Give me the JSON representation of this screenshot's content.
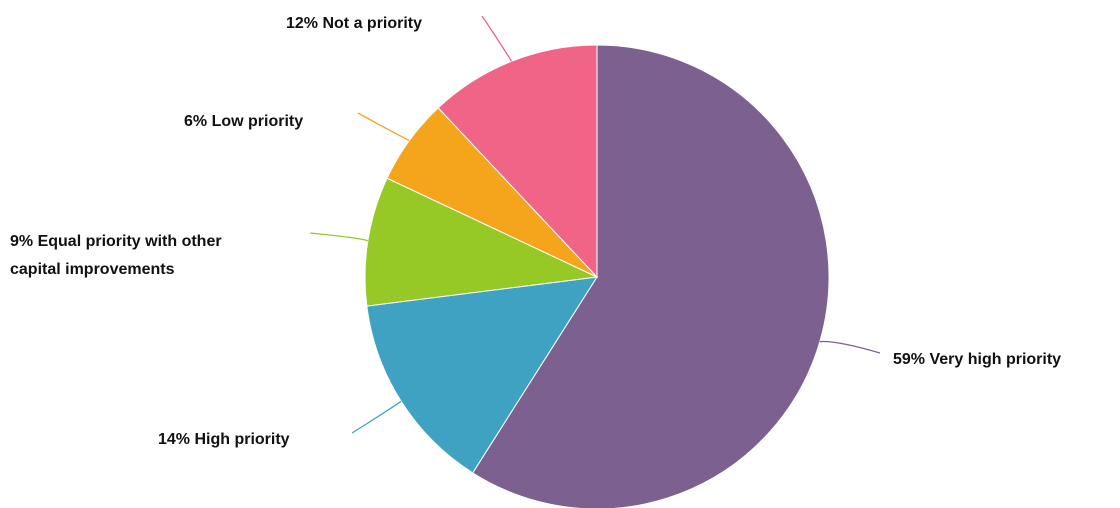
{
  "chart_data": {
    "type": "pie",
    "start_angle_deg": 0,
    "direction": "clockwise",
    "slices": [
      {
        "label_lines": [
          "59% Very high priority"
        ],
        "value": 59,
        "color": "#7c6190"
      },
      {
        "label_lines": [
          "14% High priority"
        ],
        "value": 14,
        "color": "#3fa2c2"
      },
      {
        "label_lines": [
          "9% Equal priority with other",
          "capital improvements"
        ],
        "value": 9,
        "color": "#97c926"
      },
      {
        "label_lines": [
          "6% Low priority"
        ],
        "value": 6,
        "color": "#f4a51c"
      },
      {
        "label_lines": [
          "12% Not a priority"
        ],
        "value": 12,
        "color": "#ef6487"
      }
    ]
  }
}
